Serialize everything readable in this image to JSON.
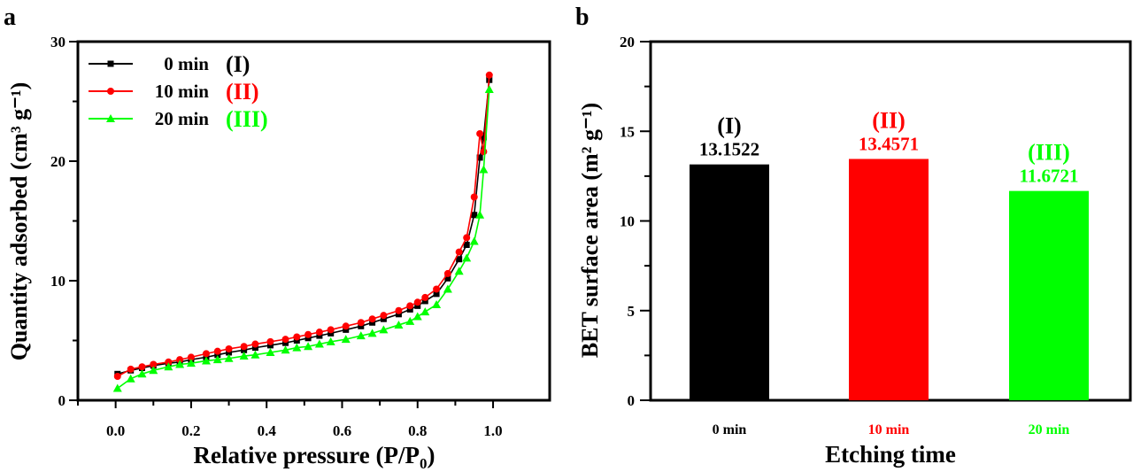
{
  "chart_data": [
    {
      "panel": "a",
      "type": "line",
      "xlabel": "Relative pressure (P/P",
      "xlabel_sub": "0",
      "xlabel_end": ")",
      "ylabel": "Quantity adsorbed (cm³ g⁻¹)",
      "xlim": [
        -0.1,
        1.15
      ],
      "ylim": [
        0,
        30
      ],
      "xticks": [
        "0.0",
        "0.2",
        "0.4",
        "0.6",
        "0.8",
        "1.0"
      ],
      "yticks": [
        "0",
        "10",
        "20",
        "30"
      ],
      "legend_position": "top-left",
      "x": [
        0.005,
        0.04,
        0.07,
        0.1,
        0.14,
        0.17,
        0.2,
        0.24,
        0.27,
        0.3,
        0.34,
        0.37,
        0.41,
        0.45,
        0.48,
        0.51,
        0.54,
        0.57,
        0.61,
        0.65,
        0.68,
        0.71,
        0.75,
        0.78,
        0.8,
        0.82,
        0.85,
        0.88,
        0.91,
        0.93,
        0.95,
        0.965,
        0.975,
        0.99
      ],
      "series": [
        {
          "name": "0 min",
          "tag": "(I)",
          "color": "#000000",
          "marker": "square",
          "values": [
            2.2,
            2.5,
            2.7,
            2.9,
            3.1,
            3.2,
            3.4,
            3.6,
            3.8,
            4.0,
            4.2,
            4.4,
            4.6,
            4.8,
            5.0,
            5.2,
            5.4,
            5.6,
            5.9,
            6.2,
            6.5,
            6.8,
            7.2,
            7.6,
            7.9,
            8.3,
            8.9,
            10.2,
            11.8,
            13.0,
            15.5,
            20.3,
            22.0,
            26.8
          ]
        },
        {
          "name": "10 min",
          "tag": "(II)",
          "color": "#ff0000",
          "marker": "circle",
          "values": [
            2.0,
            2.6,
            2.8,
            3.0,
            3.2,
            3.4,
            3.6,
            3.9,
            4.1,
            4.3,
            4.5,
            4.7,
            4.9,
            5.1,
            5.3,
            5.5,
            5.7,
            5.9,
            6.2,
            6.5,
            6.8,
            7.1,
            7.5,
            7.9,
            8.2,
            8.6,
            9.3,
            10.6,
            12.4,
            13.6,
            17.0,
            22.3,
            20.8,
            27.2
          ]
        },
        {
          "name": "20 min",
          "tag": "(III)",
          "color": "#00ff00",
          "marker": "triangle",
          "values": [
            1.0,
            1.8,
            2.2,
            2.5,
            2.8,
            3.0,
            3.1,
            3.3,
            3.4,
            3.5,
            3.7,
            3.8,
            4.0,
            4.2,
            4.4,
            4.5,
            4.7,
            4.9,
            5.1,
            5.4,
            5.6,
            5.9,
            6.3,
            6.6,
            7.0,
            7.4,
            8.0,
            9.3,
            10.8,
            11.9,
            13.3,
            15.5,
            19.3,
            26.0
          ]
        }
      ]
    },
    {
      "panel": "b",
      "type": "bar",
      "xlabel": "Etching time",
      "ylabel": "BET surface area (m² g⁻¹)",
      "ylim": [
        0,
        20
      ],
      "yticks": [
        "0",
        "5",
        "10",
        "15",
        "20"
      ],
      "categories": [
        "0 min",
        "10 min",
        "20 min"
      ],
      "values": [
        13.1522,
        13.4571,
        11.6721
      ],
      "value_labels": [
        "13.1522",
        "13.4571",
        "11.6721"
      ],
      "tags": [
        "(I)",
        "(II)",
        "(III)"
      ],
      "colors": [
        "#000000",
        "#ff0000",
        "#00ff00"
      ]
    }
  ]
}
